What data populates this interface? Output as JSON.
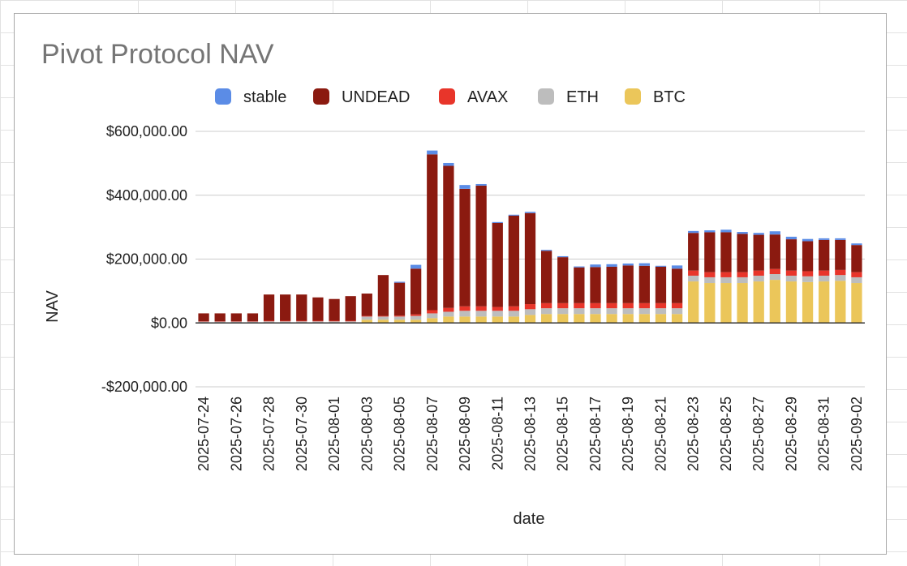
{
  "colors": {
    "stable": "#5b8ce6",
    "UNDEAD": "#8b1a10",
    "AVAX": "#e8352a",
    "ETH": "#bdbdbd",
    "BTC": "#ebc65a",
    "gridline": "#cccccc",
    "zero_line": "#333333",
    "sheet_gridline": "#e2e2e2"
  },
  "chart_data": {
    "type": "bar",
    "stacked": true,
    "title": "Pivot Protocol NAV",
    "xlabel": "date",
    "ylabel": "NAV",
    "ylim": [
      -200000,
      600000
    ],
    "y_ticks": [
      -200000,
      0,
      200000,
      400000,
      600000
    ],
    "y_tick_labels": [
      "-$200,000.00",
      "$0.00",
      "$200,000.00",
      "$400,000.00",
      "$600,000.00"
    ],
    "grid": true,
    "legend_position": "top",
    "legend": [
      "stable",
      "UNDEAD",
      "AVAX",
      "ETH",
      "BTC"
    ],
    "x_tick_labels": [
      "2025-07-24",
      "2025-07-26",
      "2025-07-28",
      "2025-07-30",
      "2025-08-01",
      "2025-08-03",
      "2025-08-05",
      "2025-08-07",
      "2025-08-09",
      "2025-08-11",
      "2025-08-13",
      "2025-08-15",
      "2025-08-17",
      "2025-08-19",
      "2025-08-21",
      "2025-08-23",
      "2025-08-25",
      "2025-08-27",
      "2025-08-29",
      "2025-08-31",
      "2025-09-02"
    ],
    "categories": [
      "2025-07-24",
      "2025-07-25",
      "2025-07-26",
      "2025-07-27",
      "2025-07-28",
      "2025-07-29",
      "2025-07-30",
      "2025-07-31",
      "2025-08-01",
      "2025-08-02",
      "2025-08-03",
      "2025-08-04",
      "2025-08-05",
      "2025-08-06",
      "2025-08-07",
      "2025-08-08",
      "2025-08-09",
      "2025-08-10",
      "2025-08-11",
      "2025-08-12",
      "2025-08-13",
      "2025-08-14",
      "2025-08-15",
      "2025-08-16",
      "2025-08-17",
      "2025-08-18",
      "2025-08-19",
      "2025-08-20",
      "2025-08-21",
      "2025-08-22",
      "2025-08-23",
      "2025-08-24",
      "2025-08-25",
      "2025-08-26",
      "2025-08-27",
      "2025-08-28",
      "2025-08-29",
      "2025-08-30",
      "2025-08-31",
      "2025-09-01",
      "2025-09-02"
    ],
    "series": [
      {
        "name": "BTC",
        "values": [
          1000,
          1000,
          1000,
          1000,
          2000,
          2000,
          2000,
          2000,
          2000,
          2000,
          10000,
          10000,
          10000,
          10000,
          15000,
          20000,
          20000,
          20000,
          20000,
          20000,
          25000,
          28000,
          28000,
          28000,
          28000,
          28000,
          28000,
          28000,
          28000,
          28000,
          130000,
          125000,
          125000,
          125000,
          130000,
          135000,
          130000,
          128000,
          130000,
          132000,
          125000
        ]
      },
      {
        "name": "ETH",
        "values": [
          3000,
          3000,
          3000,
          3000,
          3000,
          3000,
          3000,
          3000,
          3000,
          3000,
          10000,
          10000,
          10000,
          12000,
          15000,
          15000,
          18000,
          18000,
          18000,
          18000,
          18000,
          18000,
          18000,
          18000,
          18000,
          18000,
          18000,
          18000,
          18000,
          18000,
          18000,
          18000,
          18000,
          18000,
          18000,
          18000,
          18000,
          18000,
          18000,
          18000,
          18000
        ]
      },
      {
        "name": "AVAX",
        "values": [
          1000,
          1000,
          1000,
          1000,
          2000,
          2000,
          2000,
          2000,
          2000,
          2000,
          2000,
          2000,
          3000,
          5000,
          10000,
          12000,
          14000,
          14000,
          12000,
          14000,
          16000,
          16000,
          16000,
          16000,
          16000,
          16000,
          16000,
          16000,
          16000,
          16000,
          16000,
          16000,
          16000,
          16000,
          16000,
          16000,
          16000,
          16000,
          16000,
          16000,
          16000
        ]
      },
      {
        "name": "UNDEAD",
        "values": [
          25000,
          25000,
          25000,
          25000,
          82000,
          82000,
          82000,
          73000,
          68000,
          77000,
          70000,
          128000,
          103000,
          143000,
          488000,
          445000,
          368000,
          378000,
          263000,
          284000,
          285000,
          164000,
          144000,
          112000,
          113000,
          114000,
          118000,
          117000,
          114000,
          108000,
          118000,
          125000,
          125000,
          120000,
          112000,
          108000,
          98000,
          94000,
          96000,
          94000,
          85000
        ]
      },
      {
        "name": "stable",
        "values": [
          0,
          0,
          0,
          0,
          0,
          0,
          0,
          0,
          0,
          0,
          0,
          0,
          3000,
          12000,
          12000,
          9000,
          12000,
          5000,
          3000,
          3000,
          4000,
          3000,
          3000,
          3000,
          8000,
          8000,
          6000,
          8000,
          3000,
          10000,
          6000,
          6000,
          8000,
          6000,
          6000,
          10000,
          8000,
          7000,
          5000,
          5000,
          5000
        ]
      }
    ]
  }
}
